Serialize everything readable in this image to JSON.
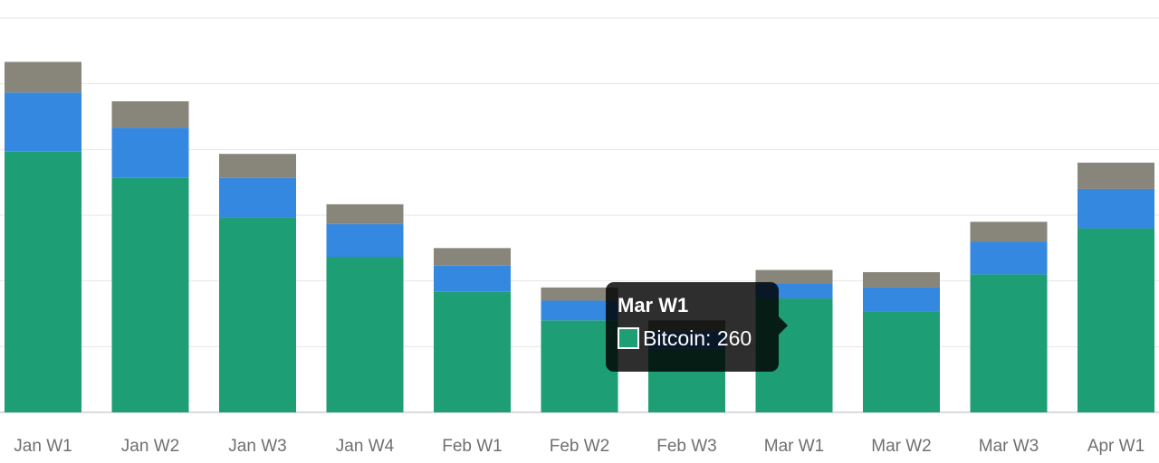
{
  "chart_data": {
    "type": "bar",
    "stacked": true,
    "categories": [
      "Jan W1",
      "Jan W2",
      "Jan W3",
      "Jan W4",
      "Feb W1",
      "Feb W2",
      "Feb W3",
      "Mar W1",
      "Mar W2",
      "Mar W3",
      "Apr W1"
    ],
    "series": [
      {
        "name": "Bitcoin",
        "color": "#1e9e74",
        "values": [
          595,
          535,
          445,
          355,
          275,
          210,
          145,
          260,
          230,
          315,
          420
        ]
      },
      {
        "color": "#3588e0",
        "values": [
          135,
          115,
          90,
          75,
          60,
          45,
          40,
          35,
          55,
          75,
          90
        ]
      },
      {
        "color": "#88857b",
        "values": [
          70,
          60,
          55,
          45,
          40,
          30,
          25,
          30,
          35,
          45,
          60
        ]
      }
    ],
    "ylim": [
      0,
      900
    ],
    "grid": true,
    "legend": "none"
  },
  "tooltip": {
    "title": "Mar W1",
    "series_label": "Bitcoin: 260",
    "swatch_color": "#1e9e74"
  }
}
